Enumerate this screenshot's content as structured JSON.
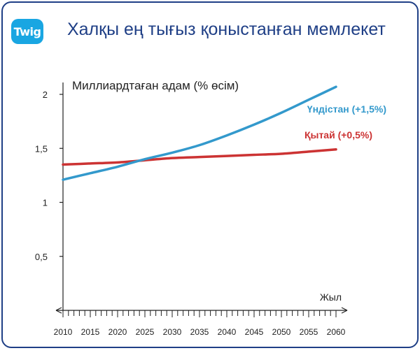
{
  "brand": {
    "logo_text": "Twig",
    "logo_color": "#19a6e2"
  },
  "header": {
    "title": "Халқы ең тығыз қоныстанған мемлекет"
  },
  "chart_data": {
    "type": "line",
    "ylabel": "Миллиардтаған адам (% өсім)",
    "xlabel": "Жыл",
    "xlim": [
      2010,
      2060
    ],
    "ylim": [
      0,
      2
    ],
    "x_ticks": [
      2010,
      2015,
      2020,
      2025,
      2030,
      2035,
      2040,
      2045,
      2050,
      2055,
      2060
    ],
    "x_tick_labels": [
      "2010",
      "2015",
      "2020",
      "2025",
      "2030",
      "2035",
      "2040",
      "2045",
      "2050",
      "2055",
      "2060"
    ],
    "y_ticks": [
      0.5,
      1,
      1.5,
      2
    ],
    "y_tick_labels": [
      "0,5",
      "1",
      "1,5",
      "2"
    ],
    "grid": false,
    "series": [
      {
        "name": "Үндістан (+1,5%)",
        "color": "#3399cc",
        "x": [
          2010,
          2015,
          2020,
          2025,
          2030,
          2035,
          2040,
          2045,
          2050,
          2055,
          2060
        ],
        "y": [
          1.21,
          1.27,
          1.33,
          1.4,
          1.46,
          1.53,
          1.62,
          1.72,
          1.83,
          1.95,
          2.07
        ]
      },
      {
        "name": "Қытай (+0,5%)",
        "color": "#cc3333",
        "x": [
          2010,
          2015,
          2020,
          2025,
          2030,
          2035,
          2040,
          2045,
          2050,
          2055,
          2060
        ],
        "y": [
          1.35,
          1.36,
          1.37,
          1.39,
          1.41,
          1.42,
          1.43,
          1.44,
          1.45,
          1.47,
          1.49
        ]
      }
    ]
  }
}
